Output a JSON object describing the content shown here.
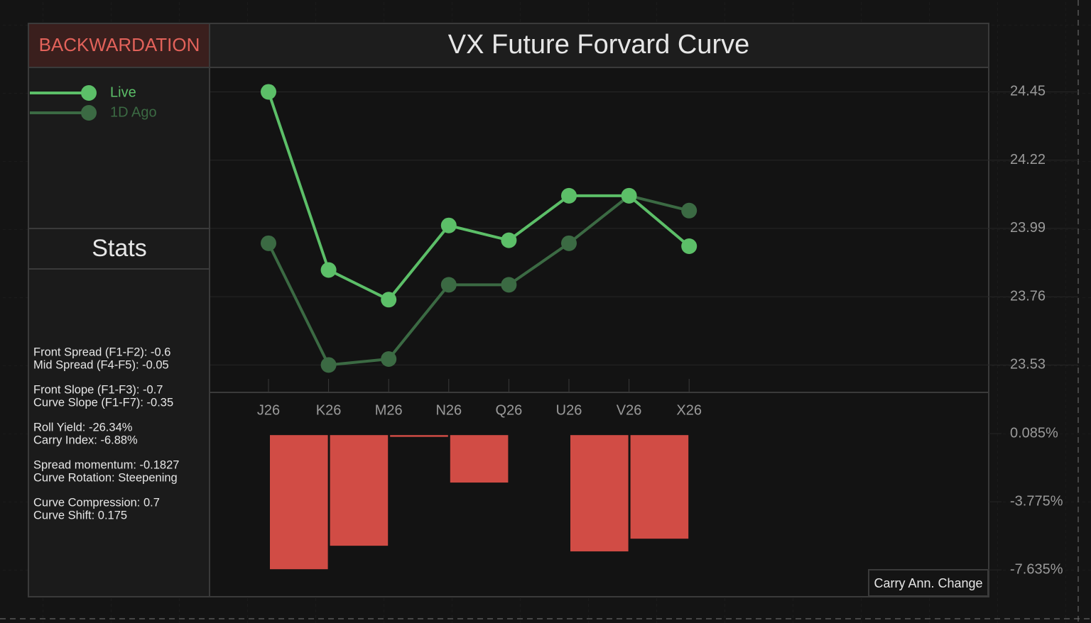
{
  "badge": "BACKWARDATION",
  "stats_title": "Stats",
  "stats": [
    [
      "Front Spread (F1-F2):  -0.6",
      "Mid Spread (F4-F5): -0.05"
    ],
    [
      "Front Slope (F1-F3): -0.7",
      "Curve Slope (F1-F7): -0.35"
    ],
    [
      "Roll Yield: -26.34%",
      "Carry Index: -6.88%"
    ],
    [
      "Spread momentum: -0.1827",
      "Curve Rotation: Steepening"
    ],
    [
      "Curve Compression: 0.7",
      "Curve Shift: 0.175"
    ]
  ],
  "chart_data": [
    {
      "type": "line",
      "title": "VX Future Forvard Curve",
      "categories": [
        "J26",
        "K26",
        "M26",
        "N26",
        "Q26",
        "U26",
        "V26",
        "X26"
      ],
      "series": [
        {
          "name": "Live",
          "color": "#5cbf68",
          "values": [
            24.45,
            23.85,
            23.75,
            24.0,
            23.95,
            24.1,
            24.1,
            23.93
          ]
        },
        {
          "name": "1D Ago",
          "color": "#3b6a43",
          "values": [
            23.94,
            23.53,
            23.55,
            23.8,
            23.8,
            23.94,
            24.1,
            24.05
          ]
        }
      ],
      "ylim": [
        23.44,
        24.53
      ],
      "yticks": [
        23.53,
        23.76,
        23.99,
        24.22,
        24.45
      ],
      "grid": true
    },
    {
      "type": "bar",
      "series": [
        {
          "name": "Carry Ann. Change",
          "color": "#d14c45",
          "values": [
            -7.6,
            -6.27,
            -0.1,
            -2.69,
            null,
            -6.59,
            -5.87,
            null
          ]
        }
      ],
      "ylim": [
        -9.12,
        2.42
      ],
      "yticks": [
        {
          "value": -7.635,
          "label": "-7.635%"
        },
        {
          "value": -3.775,
          "label": "-3.775%"
        },
        {
          "value": 0.085,
          "label": "0.085%"
        }
      ]
    }
  ]
}
